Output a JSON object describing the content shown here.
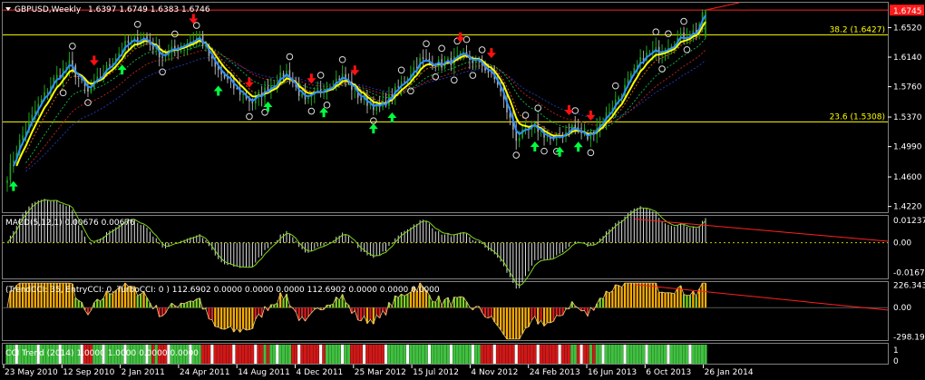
{
  "header": {
    "title": "GBPUSD,Weekly",
    "ohlc": "1.6397 1.6749 1.6383 1.6746"
  },
  "colors": {
    "background": "#000000",
    "candle_up": "#1fa51f",
    "candle_down": "#aaaaaa",
    "fast_ma": "#2f8fff",
    "slow_ma": "#ffff00",
    "resistance": "#ff2020",
    "fib": "#ffff00",
    "price_badge": "#ff1a1a",
    "arrow_buy": "#00ff40",
    "arrow_sell": "#ff1010"
  },
  "chart_data": [
    {
      "type": "candlestick",
      "title": "GBPUSD,Weekly",
      "ylim": [
        1.4146,
        1.684
      ],
      "y_ticks": [
        "1.6520",
        "1.6140",
        "1.5760",
        "1.5370",
        "1.4990",
        "1.4600",
        "1.4220"
      ],
      "y_tick_values": [
        1.652,
        1.614,
        1.576,
        1.537,
        1.499,
        1.46,
        1.422
      ],
      "current_price": "1.6745",
      "fib_levels": [
        {
          "label": "38.2 (1.6427)",
          "value": 1.6427
        },
        {
          "label": "23.6 (1.5308)",
          "value": 1.5308
        }
      ],
      "resistance_level": 1.6745,
      "x_labels": [
        "23 May 2010",
        "12 Sep 2010",
        "2 Jan 2011",
        "24 Apr 2011",
        "14 Aug 2011",
        "4 Dec 2011",
        "25 Mar 2012",
        "15 Jul 2012",
        "4 Nov 2012",
        "24 Feb 2013",
        "16 Jun 2013",
        "6 Oct 2013",
        "26 Jan 2014"
      ],
      "anchors": [
        {
          "i": 0,
          "p": 1.462
        },
        {
          "i": 4,
          "p": 1.505
        },
        {
          "i": 9,
          "p": 1.545
        },
        {
          "i": 15,
          "p": 1.585
        },
        {
          "i": 20,
          "p": 1.605
        },
        {
          "i": 26,
          "p": 1.568
        },
        {
          "i": 31,
          "p": 1.595
        },
        {
          "i": 38,
          "p": 1.63
        },
        {
          "i": 44,
          "p": 1.64
        },
        {
          "i": 50,
          "p": 1.615
        },
        {
          "i": 56,
          "p": 1.63
        },
        {
          "i": 62,
          "p": 1.64
        },
        {
          "i": 67,
          "p": 1.6
        },
        {
          "i": 73,
          "p": 1.575
        },
        {
          "i": 79,
          "p": 1.556
        },
        {
          "i": 84,
          "p": 1.575
        },
        {
          "i": 90,
          "p": 1.595
        },
        {
          "i": 96,
          "p": 1.555
        },
        {
          "i": 102,
          "p": 1.575
        },
        {
          "i": 108,
          "p": 1.59
        },
        {
          "i": 114,
          "p": 1.56
        },
        {
          "i": 120,
          "p": 1.548
        },
        {
          "i": 126,
          "p": 1.575
        },
        {
          "i": 133,
          "p": 1.61
        },
        {
          "i": 140,
          "p": 1.605
        },
        {
          "i": 147,
          "p": 1.615
        },
        {
          "i": 153,
          "p": 1.605
        },
        {
          "i": 158,
          "p": 1.58
        },
        {
          "i": 164,
          "p": 1.51
        },
        {
          "i": 170,
          "p": 1.525
        },
        {
          "i": 176,
          "p": 1.505
        },
        {
          "i": 182,
          "p": 1.525
        },
        {
          "i": 187,
          "p": 1.51
        },
        {
          "i": 193,
          "p": 1.54
        },
        {
          "i": 199,
          "p": 1.575
        },
        {
          "i": 205,
          "p": 1.615
        },
        {
          "i": 211,
          "p": 1.625
        },
        {
          "i": 217,
          "p": 1.64
        },
        {
          "i": 222,
          "p": 1.648
        },
        {
          "i": 225,
          "p": 1.6746
        }
      ]
    },
    {
      "type": "bar",
      "title": "MACD(5,12,1) 0.00676 0.00676",
      "ylim": [
        -0.02,
        0.015
      ],
      "y_ticks": [
        "0.01237",
        "0.00",
        "-0.01671"
      ],
      "y_tick_values": [
        0.01237,
        0.0,
        -0.01671
      ]
    },
    {
      "type": "bar",
      "title": "(TrendCCI: 35, EntryCCI: 0, TurboCCI: 0 ) 112.6902 0.0000 0.0000 0.0000 112.6902 0.0000 0.0000 0.0000",
      "ylim": [
        -330,
        260
      ],
      "y_ticks": [
        "226.3434",
        "0.00",
        "-298.191"
      ],
      "y_tick_values": [
        226.3434,
        0.0,
        -298.191
      ]
    },
    {
      "type": "bar",
      "title": "CCI Trend (2014) 1.0000 1.0000 0.0000 0.0000",
      "y_ticks": [
        "1",
        "0"
      ],
      "y_tick_values": [
        1,
        0
      ]
    }
  ]
}
